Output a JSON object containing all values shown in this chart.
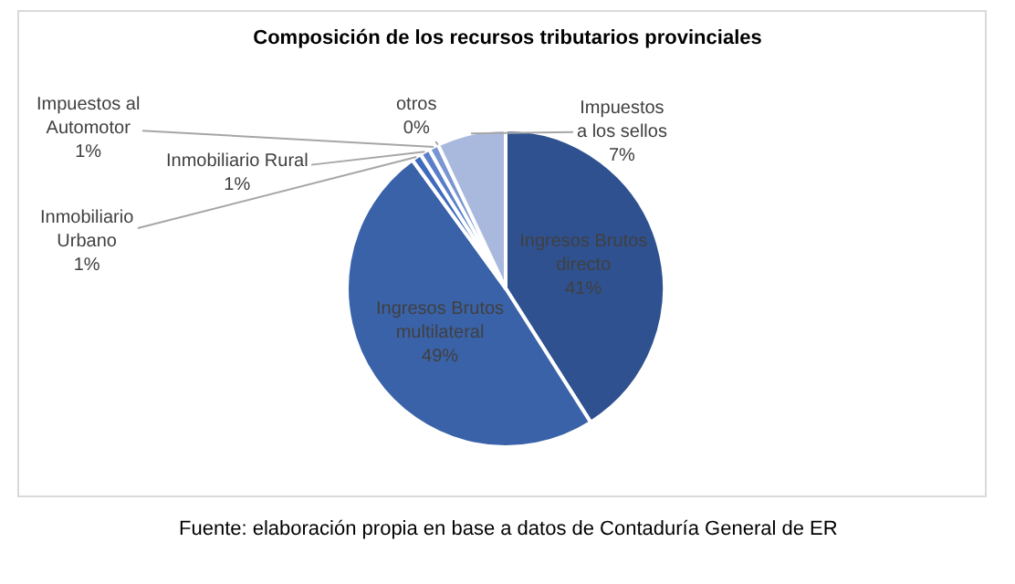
{
  "chart_data": {
    "type": "pie",
    "title": "Composición de los recursos tributarios provinciales",
    "categories": [
      "Ingresos Brutos directo",
      "Ingresos Brutos multilateral",
      "Inmobiliario Urbano",
      "Inmobiliario Rural",
      "Impuestos al Automotor",
      "otros",
      "Impuestos a los sellos"
    ],
    "values": [
      41,
      49,
      1,
      1,
      1,
      0,
      7
    ],
    "value_labels": [
      "41%",
      "49%",
      "1%",
      "1%",
      "1%",
      "0%",
      "7%"
    ],
    "colors": [
      "#2f5190",
      "#3a62a8",
      "#3f6bbd",
      "#5a7fc8",
      "#7a96d2",
      "#8ea6d8",
      "#a9b9de"
    ],
    "legend": false,
    "annotations": [
      "Fuente: elaboración propia en base a datos de Contaduría General de ER"
    ]
  }
}
